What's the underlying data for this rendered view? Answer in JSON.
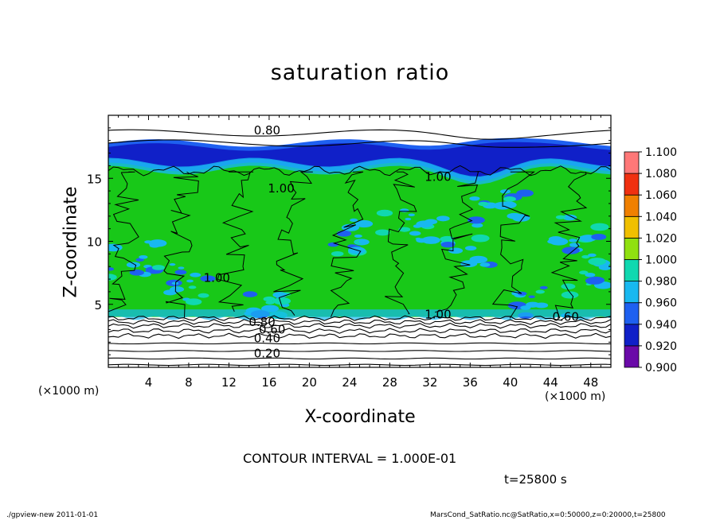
{
  "footer": {
    "program": "./gpview-new   2011-01-01",
    "source": "MarsCond_SatRatio.nc@SatRatio,x=0:50000,z=0:20000,t=25800"
  },
  "annotations": {
    "x_unit": "(×1000 m)",
    "x_unit_right": "(×1000 m)",
    "contour_interval": "CONTOUR INTERVAL = 1.000E-01",
    "time": "t=25800 s"
  },
  "chart_data": {
    "type": "heatmap",
    "title": "saturation ratio",
    "xlabel": "X-coordinate",
    "ylabel": "Z-coordinate",
    "xlim": [
      0,
      50
    ],
    "ylim": [
      0,
      20
    ],
    "x_ticks": [
      4,
      8,
      12,
      16,
      20,
      24,
      28,
      32,
      36,
      40,
      44,
      48
    ],
    "y_ticks": [
      5,
      10,
      15
    ],
    "colorbar": {
      "levels": [
        0.9,
        0.92,
        0.94,
        0.96,
        0.98,
        1.0,
        1.02,
        1.04,
        1.06,
        1.08,
        1.1
      ],
      "labels": [
        "0.900",
        "0.920",
        "0.940",
        "0.960",
        "0.980",
        "1.000",
        "1.020",
        "1.040",
        "1.060",
        "1.080",
        "1.100"
      ],
      "colors": [
        "#6a0aa8",
        "#1020c8",
        "#1e60f0",
        "#18b8f0",
        "#10d8b0",
        "#18c818",
        "#90e010",
        "#f0c000",
        "#f08000",
        "#f03010",
        "#ff7878"
      ]
    },
    "contour_labels": [
      {
        "text": "0.80",
        "x": 15.8,
        "z": 18.8
      },
      {
        "text": "1.00",
        "x": 17.2,
        "z": 14.2
      },
      {
        "text": "1.00",
        "x": 32.8,
        "z": 15.1
      },
      {
        "text": "1.00",
        "x": 10.8,
        "z": 7.1
      },
      {
        "text": "1.00",
        "x": 32.8,
        "z": 4.2
      },
      {
        "text": "0.80",
        "x": 15.3,
        "z": 3.6
      },
      {
        "text": "0.60",
        "x": 16.3,
        "z": 3.0
      },
      {
        "text": "0.40",
        "x": 15.8,
        "z": 2.3
      },
      {
        "text": "0.60",
        "x": 45.5,
        "z": 4.0
      },
      {
        "text": "0.20",
        "x": 15.8,
        "z": 1.1
      }
    ],
    "isolines_low_z": [
      0.2,
      0.7,
      1.3,
      1.9,
      2.5,
      2.9,
      3.3,
      3.6,
      3.9
    ],
    "isolines_high_z": [
      17.8,
      18.6
    ]
  }
}
